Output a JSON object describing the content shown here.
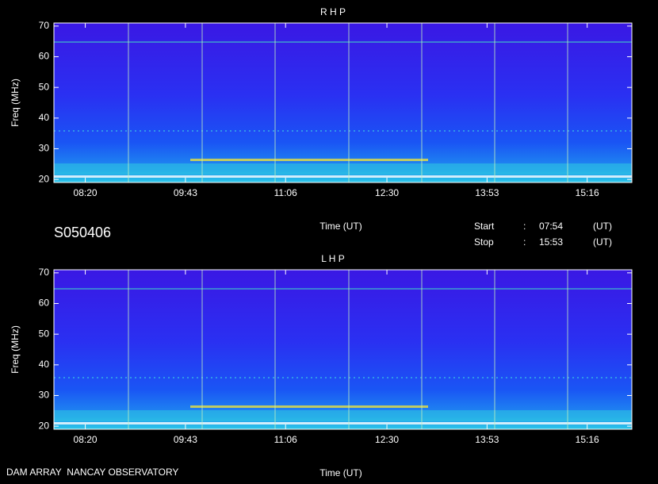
{
  "chart_data": [
    {
      "type": "spectrogram",
      "title": "R H P",
      "ylabel": "Freq (MHz)",
      "xlabel": "Time (UT)",
      "xlim": [
        474,
        953
      ],
      "xticks": [
        {
          "value": 500,
          "label": "08:20"
        },
        {
          "value": 583,
          "label": "09:43"
        },
        {
          "value": 666,
          "label": "11:06"
        },
        {
          "value": 750,
          "label": "12:30"
        },
        {
          "value": 833,
          "label": "13:53"
        },
        {
          "value": 916,
          "label": "15:16"
        }
      ],
      "ylim": [
        19,
        71
      ],
      "yticks": [
        20,
        30,
        40,
        50,
        60,
        70
      ]
    },
    {
      "type": "spectrogram",
      "title": "L H P",
      "ylabel": "Freq (MHz)",
      "xlabel": "Time (UT)",
      "xlim": [
        474,
        953
      ],
      "xticks": [
        {
          "value": 500,
          "label": "08:20"
        },
        {
          "value": 583,
          "label": "09:43"
        },
        {
          "value": 666,
          "label": "11:06"
        },
        {
          "value": 750,
          "label": "12:30"
        },
        {
          "value": 833,
          "label": "13:53"
        },
        {
          "value": 916,
          "label": "15:16"
        }
      ],
      "ylim": [
        19,
        71
      ],
      "yticks": [
        20,
        30,
        40,
        50,
        60,
        70
      ]
    }
  ],
  "info": {
    "id": "S050406",
    "rows": [
      [
        "Start",
        ":",
        "07:54",
        "(UT)"
      ],
      [
        "Stop",
        ":",
        "15:53",
        "(UT)"
      ]
    ]
  },
  "footer": "DAM ARRAY  NANCAY OBSERVATORY"
}
